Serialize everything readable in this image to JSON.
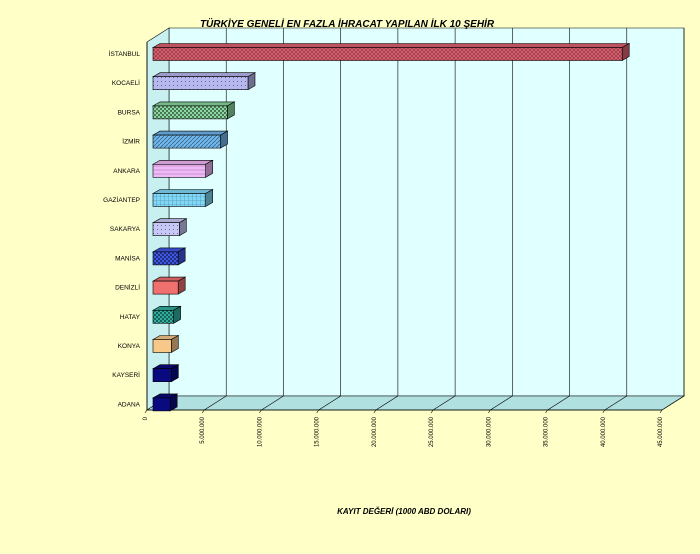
{
  "chart_data": {
    "type": "bar",
    "orientation": "horizontal",
    "title": "TÜRKİYE GENELİ EN FAZLA İHRACAT YAPILAN İLK 10 ŞEHİR",
    "xlabel": "KAYIT DEĞERİ (1000 ABD DOLARI)",
    "ylabel": "",
    "xlim": [
      0,
      45000000
    ],
    "xticks": [
      0,
      5000000,
      10000000,
      15000000,
      20000000,
      25000000,
      30000000,
      35000000,
      40000000,
      45000000
    ],
    "xtick_labels": [
      "0",
      "5.000.000",
      "10.000.000",
      "15.000.000",
      "20.000.000",
      "25.000.000",
      "30.000.000",
      "35.000.000",
      "40.000.000",
      "45.000.000"
    ],
    "grid": "vertical",
    "three_d": true,
    "categories": [
      "İSTANBUL",
      "KOCAELİ",
      "BURSA",
      "İZMİR",
      "ANKARA",
      "GAZİANTEP",
      "SAKARYA",
      "MANİSA",
      "DENİZLİ",
      "HATAY",
      "KONYA",
      "KAYSERİ",
      "ADANA"
    ],
    "values": [
      41000000,
      8300000,
      6500000,
      5900000,
      4600000,
      4600000,
      2300000,
      2200000,
      2200000,
      1800000,
      1600000,
      1600000,
      1500000
    ],
    "colors": [
      "#E06070",
      "#B8B8F0",
      "#88D8A0",
      "#70B8F0",
      "#F0B8F8",
      "#80D8F8",
      "#C8C8F8",
      "#4058E8",
      "#F07070",
      "#30B0A0",
      "#F8C888",
      "#0A0A80",
      "#0A0A80"
    ],
    "patterns": [
      "cross",
      "dots",
      "check",
      "diag",
      "dense",
      "grid",
      "dots",
      "check",
      "solid",
      "check",
      "solid",
      "solid",
      "solid"
    ],
    "plot_background": "#E0FFFF"
  }
}
